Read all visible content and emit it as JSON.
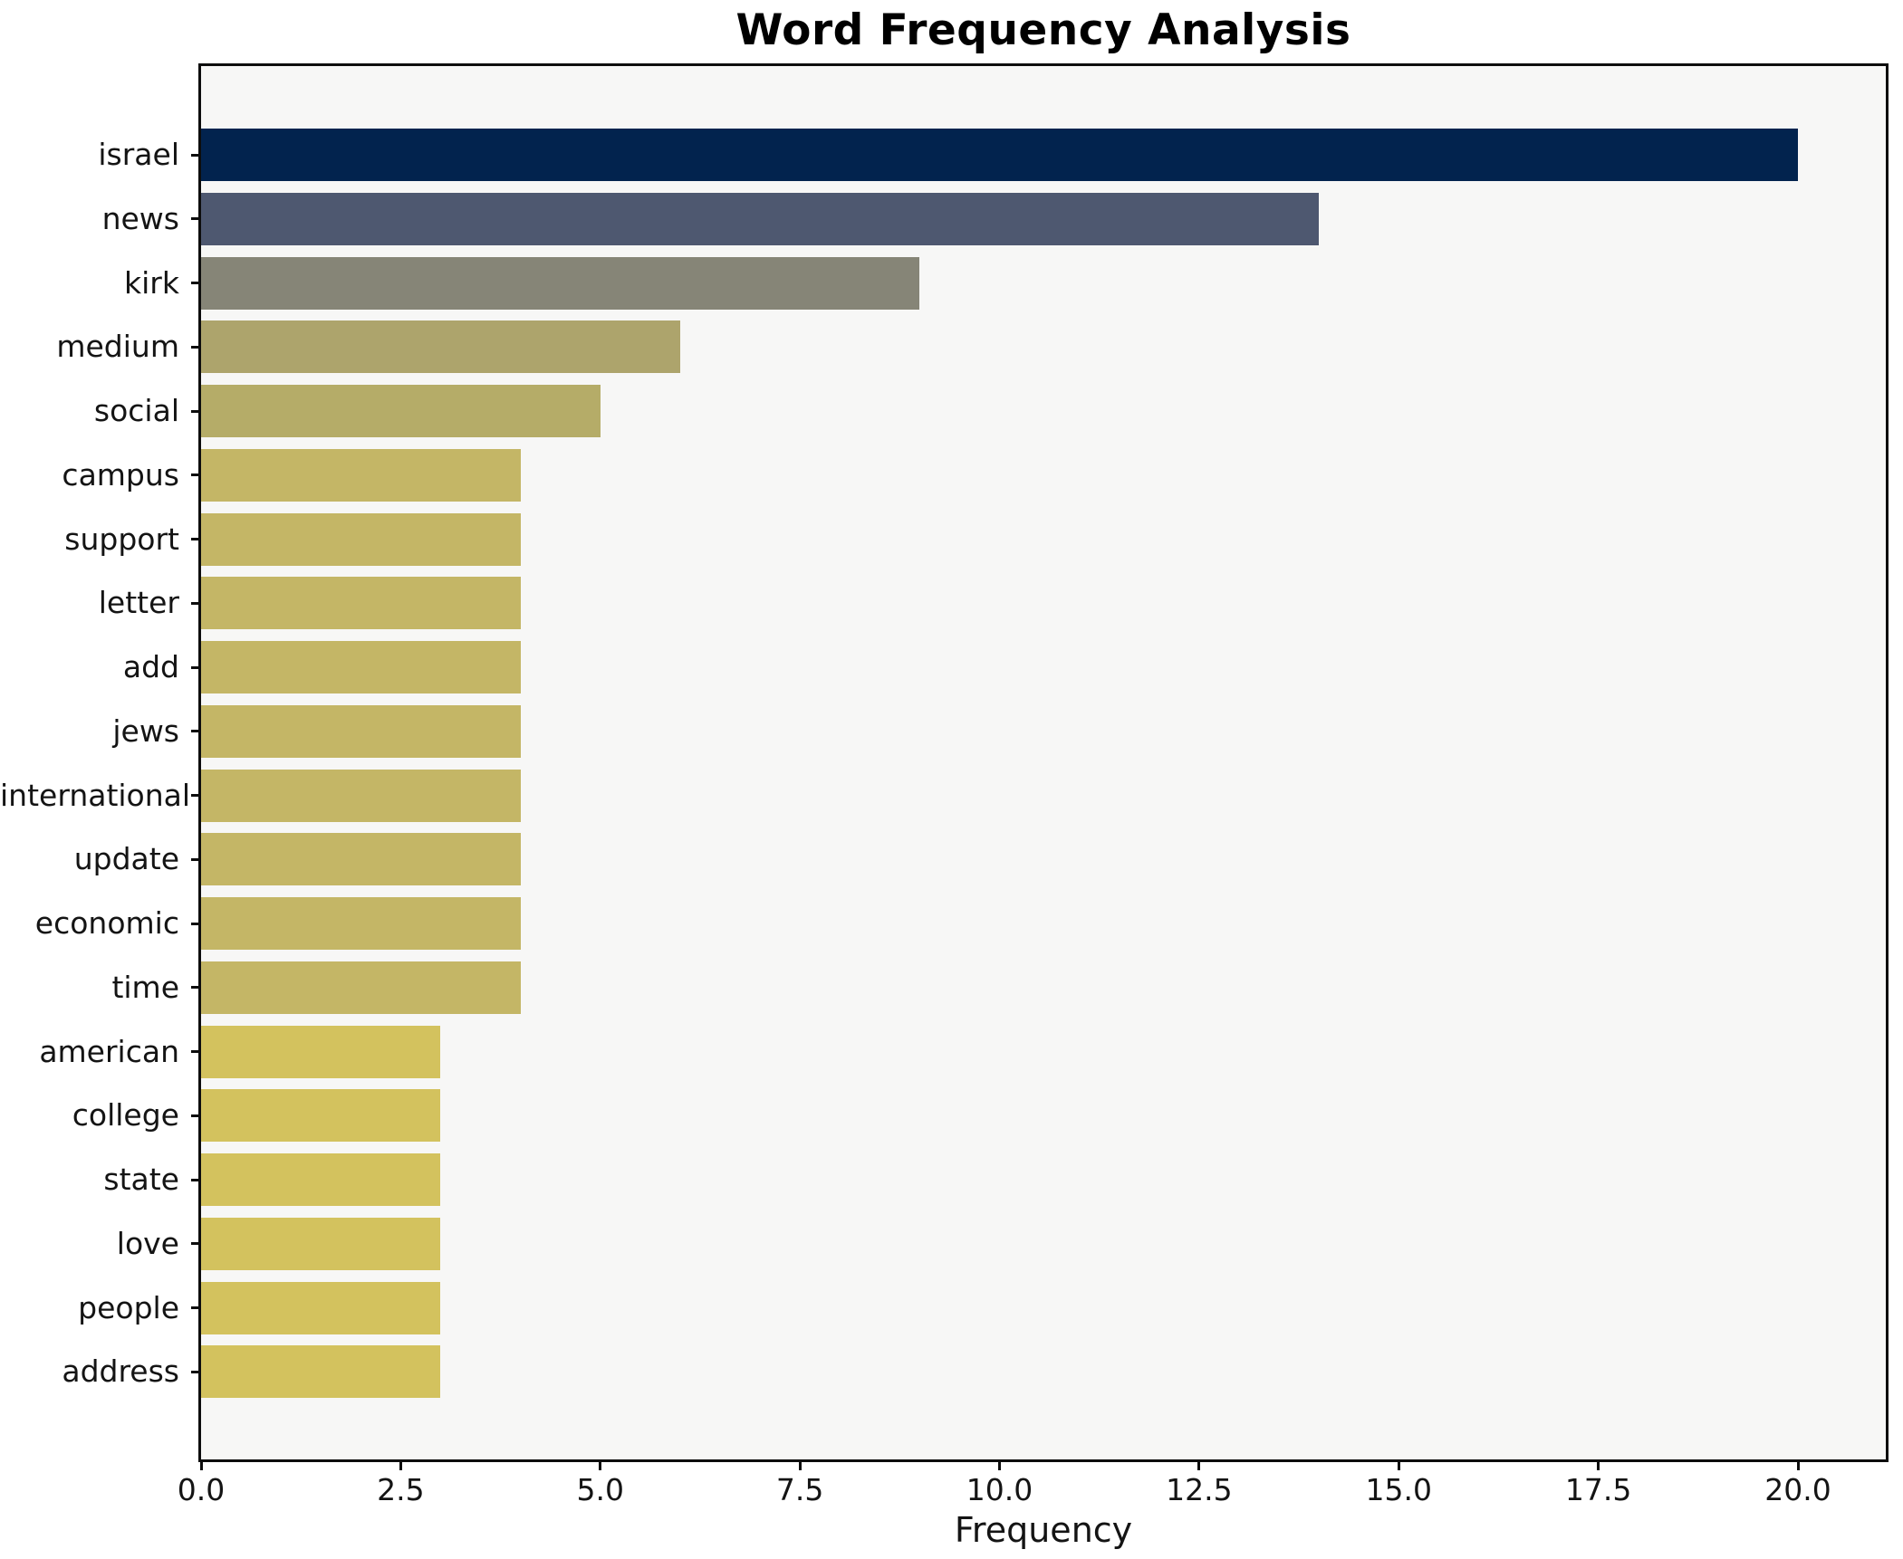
{
  "figure": {
    "background_color": "#ffffff",
    "plot_background_color": "#f7f7f6",
    "frame_color": "#0d0d0d",
    "text_color": "#141414"
  },
  "chart_data": {
    "type": "bar",
    "orientation": "horizontal",
    "title": "Word Frequency Analysis",
    "xlabel": "Frequency",
    "ylabel": "",
    "categories": [
      "israel",
      "news",
      "kirk",
      "medium",
      "social",
      "campus",
      "support",
      "letter",
      "add",
      "jews",
      "international",
      "update",
      "economic",
      "time",
      "american",
      "college",
      "state",
      "love",
      "people",
      "address"
    ],
    "values": [
      20,
      14,
      9,
      6,
      5,
      4,
      4,
      4,
      4,
      4,
      4,
      4,
      4,
      4,
      3,
      3,
      3,
      3,
      3,
      3
    ],
    "bar_colors": [
      "#02234e",
      "#4e5870",
      "#868577",
      "#ada46c",
      "#b5ac68",
      "#c4b666",
      "#c4b666",
      "#c4b666",
      "#c4b666",
      "#c4b666",
      "#c4b666",
      "#c4b666",
      "#c4b666",
      "#c4b666",
      "#d3c25e",
      "#d3c25e",
      "#d3c25e",
      "#d3c25e",
      "#d3c25e",
      "#d3c25e"
    ],
    "xlim": [
      0,
      21.1
    ],
    "xticks": [
      0,
      2.5,
      5,
      7.5,
      10,
      12.5,
      15,
      17.5,
      20
    ],
    "xtick_labels": [
      "0.0",
      "2.5",
      "5.0",
      "7.5",
      "10.0",
      "12.5",
      "15.0",
      "17.5",
      "20.0"
    ],
    "grid": false,
    "legend": null
  }
}
